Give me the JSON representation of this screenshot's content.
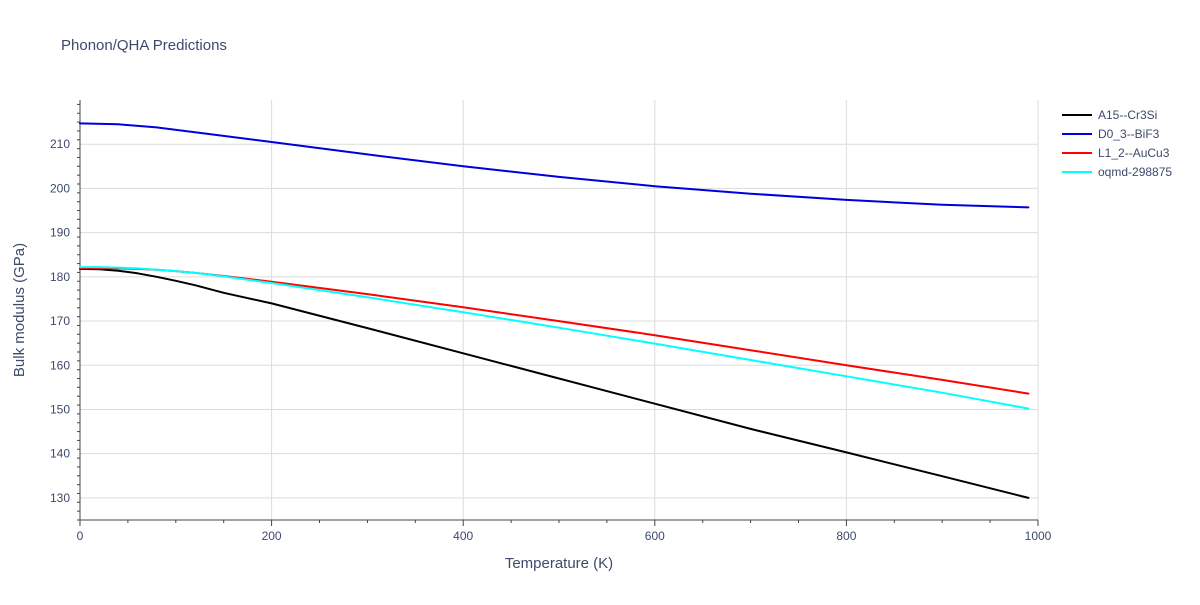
{
  "chart_data": {
    "type": "line",
    "title": "Phonon/QHA Predictions",
    "xlabel": "Temperature (K)",
    "ylabel": "Bulk modulus (GPa)",
    "xlim": [
      0,
      1000
    ],
    "ylim": [
      125,
      220
    ],
    "xticks": [
      0,
      200,
      400,
      600,
      800,
      1000
    ],
    "yticks": [
      130,
      140,
      150,
      160,
      170,
      180,
      190,
      200,
      210
    ],
    "grid": true,
    "legend_position": "top-right",
    "series": [
      {
        "name": "A15--Cr3Si",
        "color": "#000000",
        "x": [
          0,
          20,
          40,
          60,
          80,
          100,
          120,
          150,
          200,
          300,
          400,
          500,
          600,
          700,
          800,
          900,
          990
        ],
        "y": [
          181.8,
          181.7,
          181.4,
          180.8,
          180.0,
          179.1,
          178.1,
          176.4,
          174.0,
          168.4,
          162.7,
          157.0,
          151.3,
          145.6,
          140.3,
          134.9,
          130.0
        ]
      },
      {
        "name": "D0_3--BiF3",
        "color": "#0000dd",
        "x": [
          0,
          40,
          80,
          120,
          200,
          300,
          400,
          500,
          600,
          700,
          800,
          900,
          990
        ],
        "y": [
          214.7,
          214.5,
          213.8,
          212.7,
          210.5,
          207.7,
          205.0,
          202.6,
          200.5,
          198.8,
          197.4,
          196.3,
          195.7
        ]
      },
      {
        "name": "L1_2--AuCu3",
        "color": "#ff0000",
        "x": [
          0,
          20,
          40,
          60,
          80,
          100,
          120,
          150,
          200,
          300,
          400,
          500,
          600,
          700,
          800,
          900,
          990
        ],
        "y": [
          182.0,
          182.0,
          181.9,
          181.8,
          181.6,
          181.3,
          180.9,
          180.2,
          178.9,
          176.1,
          173.1,
          170.0,
          166.8,
          163.4,
          160.0,
          156.7,
          153.6
        ]
      },
      {
        "name": "oqmd-298875",
        "color": "#00ffff",
        "x": [
          0,
          20,
          40,
          60,
          80,
          100,
          120,
          150,
          200,
          300,
          400,
          500,
          600,
          700,
          800,
          900,
          990
        ],
        "y": [
          182.2,
          182.2,
          182.1,
          181.9,
          181.6,
          181.3,
          180.9,
          180.1,
          178.6,
          175.4,
          172.0,
          168.5,
          164.9,
          161.2,
          157.5,
          153.8,
          150.2
        ]
      }
    ]
  }
}
